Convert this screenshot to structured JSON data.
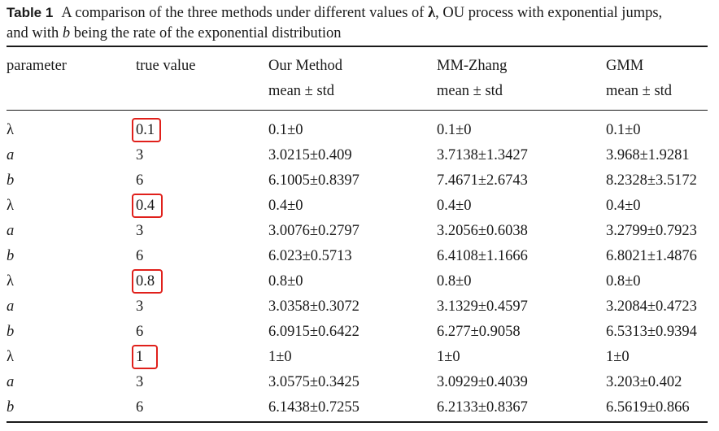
{
  "caption": {
    "label": "Table 1",
    "line1_pre": "A comparison of the three methods under different values of ",
    "line1_symbol": "λ",
    "line1_post": ", OU process with exponential jumps,",
    "line2_pre": "and with ",
    "line2_var": "b",
    "line2_post": " being the rate of the exponential distribution"
  },
  "headers": {
    "parameter": "parameter",
    "true_value": "true value",
    "our_method": "Our Method",
    "mm_zhang": "MM-Zhang",
    "gmm": "GMM",
    "sub": "mean ± std"
  },
  "rows": [
    {
      "param": "λ",
      "true": "0.1",
      "ours": "0.1±0",
      "mm": "0.1±0",
      "gmm": "0.1±0"
    },
    {
      "param": "a",
      "true": "3",
      "ours": "3.0215±0.409",
      "mm": "3.7138±1.3427",
      "gmm": "3.968±1.9281"
    },
    {
      "param": "b",
      "true": "6",
      "ours": "6.1005±0.8397",
      "mm": "7.4671±2.6743",
      "gmm": "8.2328±3.5172"
    },
    {
      "param": "λ",
      "true": "0.4",
      "ours": "0.4±0",
      "mm": "0.4±0",
      "gmm": "0.4±0"
    },
    {
      "param": "a",
      "true": "3",
      "ours": "3.0076±0.2797",
      "mm": "3.2056±0.6038",
      "gmm": "3.2799±0.7923"
    },
    {
      "param": "b",
      "true": "6",
      "ours": "6.023±0.5713",
      "mm": "6.4108±1.1666",
      "gmm": "6.8021±1.4876"
    },
    {
      "param": "λ",
      "true": "0.8",
      "ours": "0.8±0",
      "mm": "0.8±0",
      "gmm": "0.8±0"
    },
    {
      "param": "a",
      "true": "3",
      "ours": "3.0358±0.3072",
      "mm": "3.1329±0.4597",
      "gmm": "3.2084±0.4723"
    },
    {
      "param": "b",
      "true": "6",
      "ours": "6.0915±0.6422",
      "mm": "6.277±0.9058",
      "gmm": "6.5313±0.9394"
    },
    {
      "param": "λ",
      "true": "1",
      "ours": "1±0",
      "mm": "1±0",
      "gmm": "1±0"
    },
    {
      "param": "a",
      "true": "3",
      "ours": "3.0575±0.3425",
      "mm": "3.0929±0.4039",
      "gmm": "3.203±0.402"
    },
    {
      "param": "b",
      "true": "6",
      "ours": "6.1438±0.7255",
      "mm": "6.2133±0.8367",
      "gmm": "6.5619±0.866"
    }
  ],
  "highlight_color": "#e0201b"
}
